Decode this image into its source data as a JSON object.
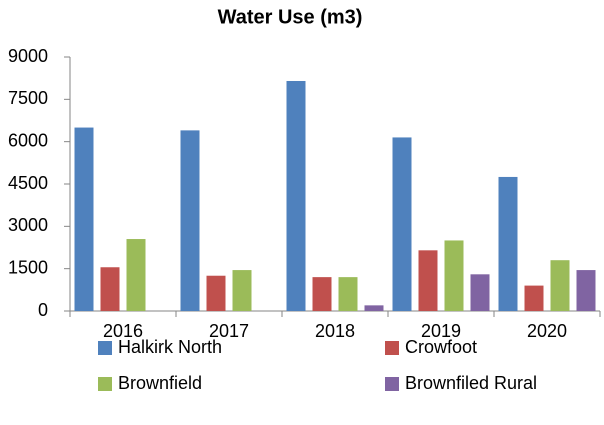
{
  "chart_data": {
    "type": "bar",
    "title": "Water Use (m3)",
    "categories": [
      "2016",
      "2017",
      "2018",
      "2019",
      "2020"
    ],
    "series": [
      {
        "name": "Halkirk North",
        "color": "#4f81bd",
        "values": [
          6500,
          6400,
          8150,
          6150,
          4750
        ]
      },
      {
        "name": "Crowfoot",
        "color": "#c0504d",
        "values": [
          1550,
          1250,
          1200,
          2150,
          900
        ]
      },
      {
        "name": "Brownfield",
        "color": "#9bbb59",
        "values": [
          2550,
          1450,
          1200,
          2500,
          1800
        ]
      },
      {
        "name": "Brownfiled Rural",
        "color": "#8064a2",
        "values": [
          null,
          null,
          200,
          1300,
          1450
        ]
      }
    ],
    "ylim": [
      0,
      9000
    ],
    "yticks": [
      0,
      1500,
      3000,
      4500,
      6000,
      7500,
      9000
    ],
    "grid": false,
    "legend": "bottom"
  }
}
